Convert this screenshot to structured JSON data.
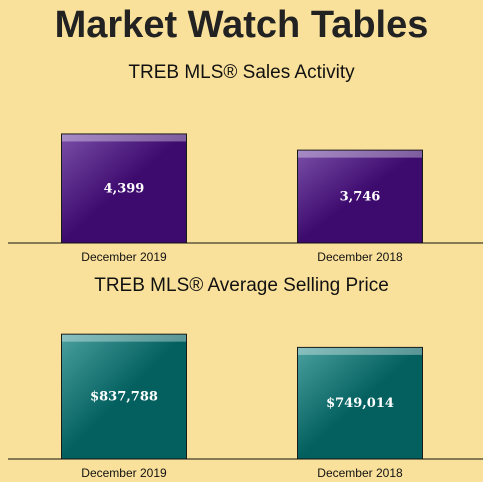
{
  "page": {
    "title": "Market Watch Tables"
  },
  "chart_data": [
    {
      "type": "bar",
      "title": "TREB MLS® Sales Activity",
      "categories": [
        "December 2019",
        "December 2018"
      ],
      "values": [
        4399,
        3746
      ],
      "value_labels": [
        "4,399",
        "3,746"
      ],
      "ylim": [
        0,
        4800
      ],
      "color": "#3d0a6e",
      "highlight": "#7a4fa8",
      "xlabel": "",
      "ylabel": "",
      "grid": false
    },
    {
      "type": "bar",
      "title": "TREB MLS® Average Selling Price",
      "categories": [
        "December 2019",
        "December 2018"
      ],
      "values": [
        837788,
        749014
      ],
      "value_labels": [
        "$837,788",
        "$749,014"
      ],
      "ylim": [
        0,
        1000000
      ],
      "color": "#03605f",
      "highlight": "#4aa09e",
      "xlabel": "",
      "ylabel": "",
      "grid": false
    }
  ]
}
